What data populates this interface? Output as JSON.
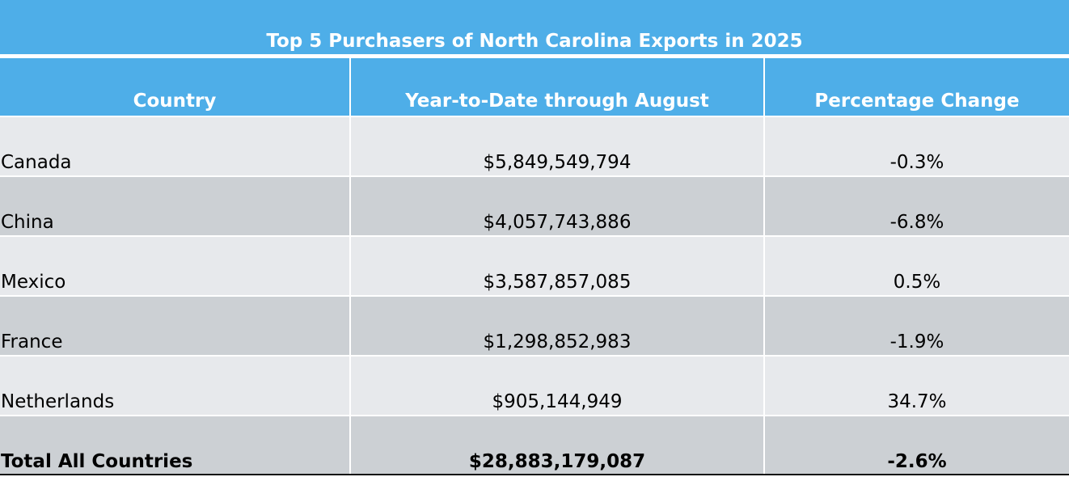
{
  "chart_data": {
    "type": "table",
    "title": "Top 5 Purchasers of North Carolina Exports in 2025",
    "columns": [
      "Country",
      "Year-to-Date through August",
      "Percentage Change"
    ],
    "rows": [
      {
        "country": "Canada",
        "ytd": "$5,849,549,794",
        "change": "-0.3%"
      },
      {
        "country": "China",
        "ytd": "$4,057,743,886",
        "change": "-6.8%"
      },
      {
        "country": "Mexico",
        "ytd": "$3,587,857,085",
        "change": "0.5%"
      },
      {
        "country": "France",
        "ytd": "$1,298,852,983",
        "change": "-1.9%"
      },
      {
        "country": "Netherlands",
        "ytd": "$905,144,949",
        "change": "34.7%"
      }
    ],
    "total": {
      "country": "Total All Countries",
      "ytd": "$28,883,179,087",
      "change": "-2.6%"
    }
  },
  "colors": {
    "header_bg": "#4eaee8",
    "row_light": "#e7e9ec",
    "row_dark": "#ccd0d4"
  }
}
